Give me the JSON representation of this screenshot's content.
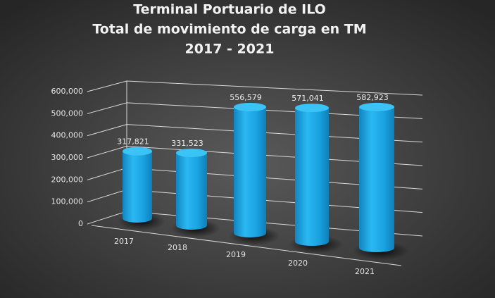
{
  "chart_data": {
    "type": "cylinder-bar",
    "title": [
      "Terminal Portuario de ILO",
      "Total de movimiento de carga en TM",
      "2017 - 2021"
    ],
    "categories": [
      "2017",
      "2018",
      "2019",
      "2020",
      "2021"
    ],
    "values": [
      317821,
      331523,
      556579,
      571041,
      582923
    ],
    "value_labels": [
      "317,821",
      "331,523",
      "556,579",
      "571,041",
      "582,923"
    ],
    "color": "#19a6e6",
    "ylim": [
      0,
      600000
    ],
    "yticks": [
      0,
      {
        "value": 100000,
        "label": "100,000"
      },
      {
        "value": 200000,
        "label": "200,000"
      },
      {
        "value": 300000,
        "label": "300,000"
      },
      {
        "value": 400000,
        "label": "400,000"
      },
      {
        "value": 500000,
        "label": "500,000"
      },
      {
        "value": 600000,
        "label": "600,000"
      }
    ],
    "grid": true
  }
}
